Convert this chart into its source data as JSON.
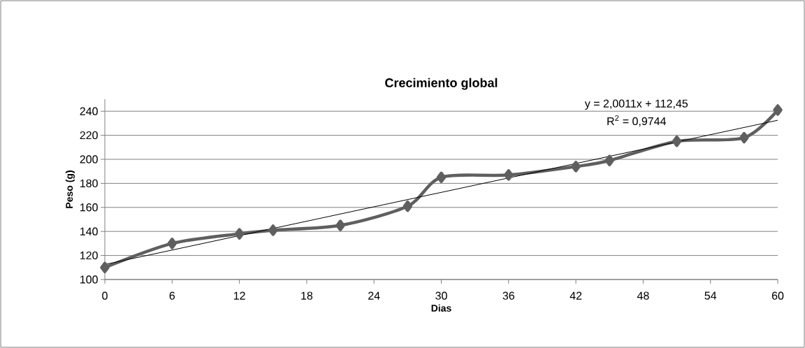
{
  "chart_data": {
    "type": "line",
    "title": "Crecimiento global",
    "xlabel": "Dias",
    "ylabel": "Peso (g)",
    "x": [
      0,
      6,
      12,
      15,
      21,
      27,
      30,
      36,
      42,
      45,
      51,
      57,
      60
    ],
    "xlim": [
      0,
      60
    ],
    "xticks": [
      0,
      6,
      12,
      18,
      24,
      30,
      36,
      42,
      48,
      54,
      60
    ],
    "ylim": [
      100,
      250
    ],
    "yticks": [
      100,
      120,
      140,
      160,
      180,
      200,
      220,
      240
    ],
    "grid": "y",
    "marker": "diamond",
    "series": [
      {
        "color": "#5f5f5f",
        "values": [
          110,
          130,
          138,
          141,
          145,
          161,
          185,
          187,
          194,
          199,
          215,
          218,
          241
        ]
      },
      {
        "type": "line",
        "x": [
          0,
          60
        ],
        "values": [
          112.5,
          232.5
        ],
        "color": "#000000",
        "marker": "none"
      }
    ],
    "annotations": [
      "y = 2,0011x + 112,45",
      "R$^{2}$ = 0,9744"
    ]
  }
}
